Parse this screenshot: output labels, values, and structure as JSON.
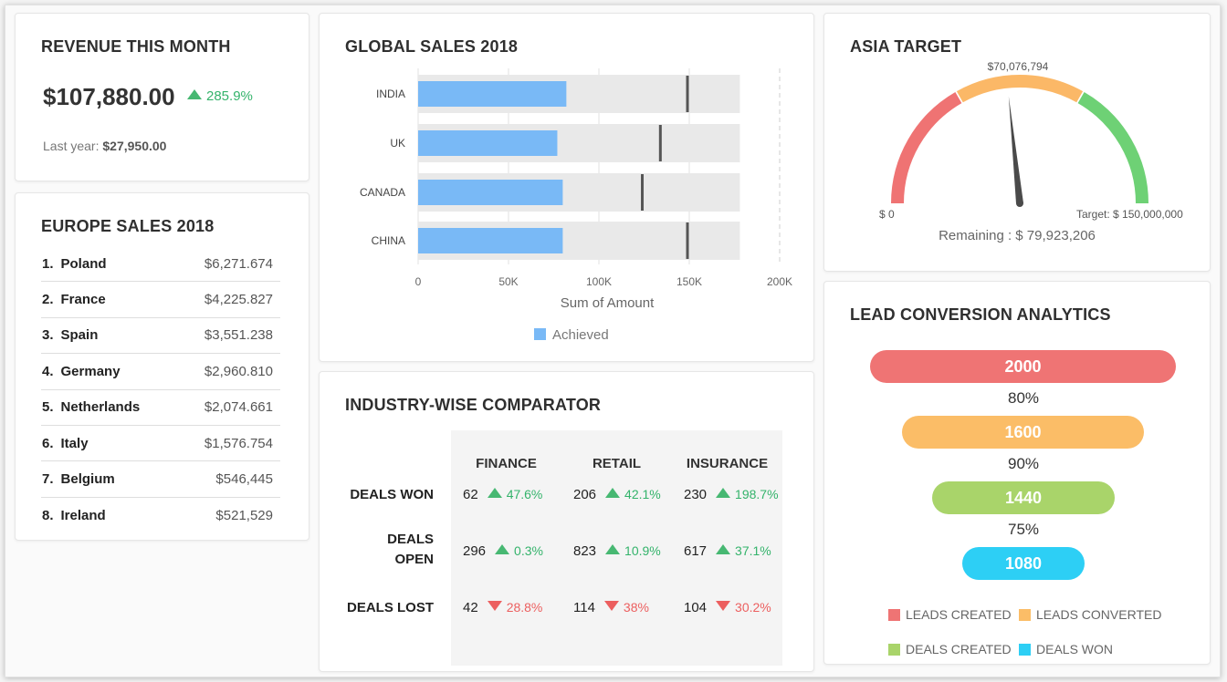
{
  "revenue": {
    "title": "REVENUE THIS MONTH",
    "amount": "$107,880.00",
    "change": "285.9%",
    "last_year_label": "Last year:",
    "last_year_value": "$27,950.00"
  },
  "europe": {
    "title": "EUROPE SALES 2018",
    "items": [
      {
        "rank": "1.",
        "country": "Poland",
        "value": "$6,271.674"
      },
      {
        "rank": "2.",
        "country": "France",
        "value": "$4,225.827"
      },
      {
        "rank": "3.",
        "country": "Spain",
        "value": "$3,551.238"
      },
      {
        "rank": "4.",
        "country": "Germany",
        "value": "$2,960.810"
      },
      {
        "rank": "5.",
        "country": "Netherlands",
        "value": "$2,074.661"
      },
      {
        "rank": "6.",
        "country": "Italy",
        "value": "$1,576.754"
      },
      {
        "rank": "7.",
        "country": "Belgium",
        "value": "$546,445"
      },
      {
        "rank": "8.",
        "country": "Ireland",
        "value": "$521,529"
      }
    ]
  },
  "global_sales": {
    "title": "GLOBAL SALES 2018",
    "xlabel": "Sum of Amount",
    "legend": "Achieved",
    "bar_color": "#79b9f6",
    "target_color": "#555555",
    "bg_color": "#e9e9e9"
  },
  "chart_data": {
    "type": "bar",
    "orientation": "horizontal",
    "title": "GLOBAL SALES 2018",
    "xlabel": "Sum of Amount",
    "ylabel": "",
    "categories": [
      "INDIA",
      "UK",
      "CANADA",
      "CHINA"
    ],
    "series": [
      {
        "name": "Achieved",
        "values": [
          82000,
          77000,
          80000,
          80000
        ]
      }
    ],
    "targets": [
      149000,
      134000,
      124000,
      149000
    ],
    "range_max": [
      178000,
      178000,
      178000,
      178000
    ],
    "xlim": [
      0,
      200000
    ],
    "xticks": [
      0,
      50000,
      100000,
      150000,
      200000
    ],
    "xtick_labels": [
      "0",
      "50K",
      "100K",
      "150K",
      "200K"
    ],
    "grid": true,
    "legend_position": "bottom"
  },
  "comparator": {
    "title": "INDUSTRY-WISE COMPARATOR",
    "columns": [
      "FINANCE",
      "RETAIL",
      "INSURANCE"
    ],
    "rows": [
      {
        "label": "DEALS WON",
        "cells": [
          {
            "value": "62",
            "pct": "47.6%",
            "dir": "up"
          },
          {
            "value": "206",
            "pct": "42.1%",
            "dir": "up"
          },
          {
            "value": "230",
            "pct": "198.7%",
            "dir": "up"
          }
        ]
      },
      {
        "label": "DEALS OPEN",
        "cells": [
          {
            "value": "296",
            "pct": "0.3%",
            "dir": "up"
          },
          {
            "value": "823",
            "pct": "10.9%",
            "dir": "up"
          },
          {
            "value": "617",
            "pct": "37.1%",
            "dir": "up"
          }
        ]
      },
      {
        "label": "DEALS LOST",
        "cells": [
          {
            "value": "42",
            "pct": "28.8%",
            "dir": "down"
          },
          {
            "value": "114",
            "pct": "38%",
            "dir": "down"
          },
          {
            "value": "104",
            "pct": "30.2%",
            "dir": "down"
          }
        ]
      }
    ]
  },
  "asia": {
    "title": "ASIA TARGET",
    "top_label": "$70,076,794",
    "min_label": "$ 0",
    "max_label": "Target: $ 150,000,000",
    "remaining": "Remaining : $ 79,923,206",
    "value": 70076794,
    "max": 150000000,
    "band_colors": [
      "#ef7373",
      "#fbb867",
      "#6ed175"
    ]
  },
  "lead": {
    "title": "LEAD CONVERSION ANALYTICS",
    "stages": [
      {
        "value": "2000",
        "color": "#ef7474"
      },
      {
        "value": "1600",
        "color": "#fbbd67"
      },
      {
        "value": "1440",
        "color": "#a9d46a"
      },
      {
        "value": "1080",
        "color": "#2dcff5"
      }
    ],
    "rates": [
      "80%",
      "90%",
      "75%"
    ],
    "legend": [
      "LEADS CREATED",
      "LEADS CONVERTED",
      "DEALS CREATED",
      "DEALS WON"
    ]
  }
}
